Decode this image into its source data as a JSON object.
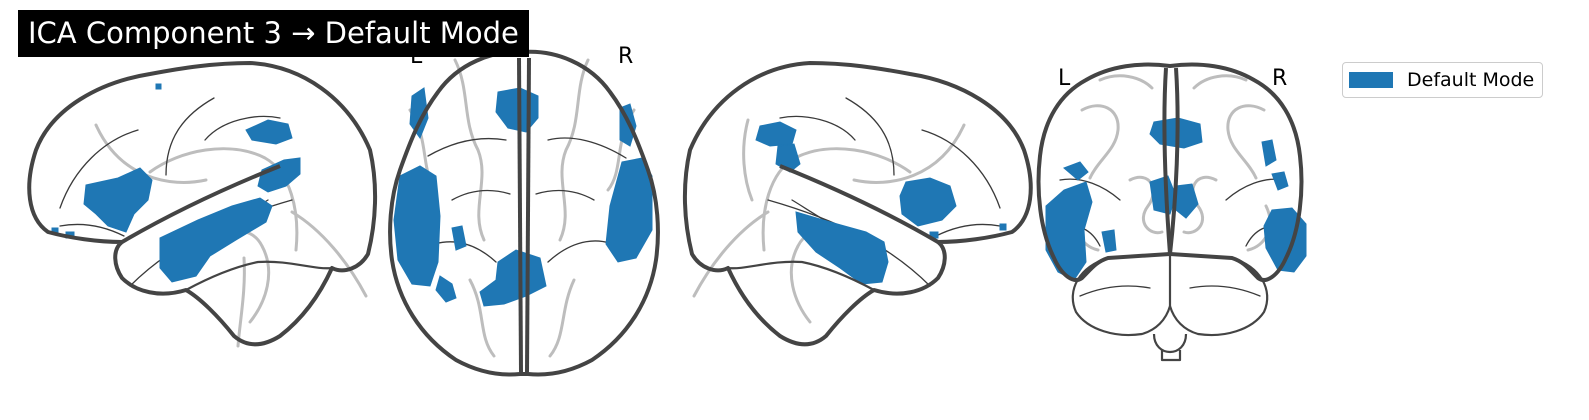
{
  "title": "ICA Component 3 → Default Mode",
  "colors": {
    "network": "#1f77b4",
    "title_bg": "#000000",
    "outline": "#444444",
    "glass": "#bdbdbd"
  },
  "views": [
    {
      "name": "sagittal-left",
      "labels": []
    },
    {
      "name": "axial",
      "labels": [
        "L",
        "R"
      ]
    },
    {
      "name": "sagittal-right",
      "labels": []
    },
    {
      "name": "coronal",
      "labels": [
        "L",
        "R"
      ]
    }
  ],
  "legend": {
    "label": "Default Mode"
  }
}
